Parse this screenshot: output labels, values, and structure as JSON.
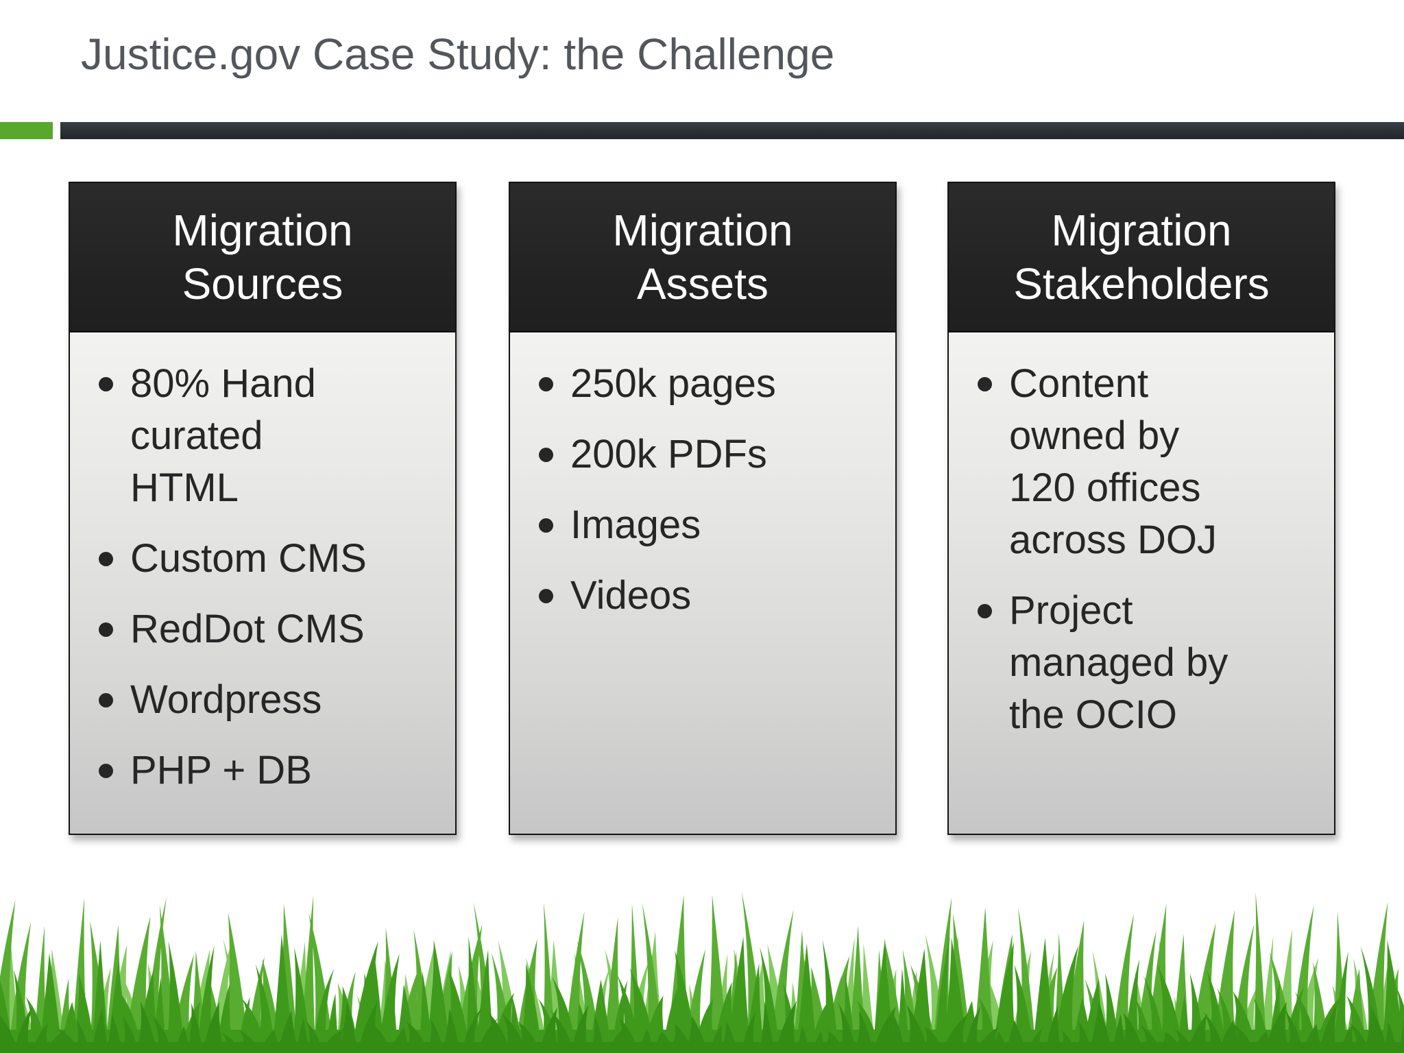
{
  "slide": {
    "title": "Justice.gov Case Study: the Challenge"
  },
  "columns": [
    {
      "header": "Migration Sources",
      "items": [
        "80% Hand curated HTML",
        "Custom CMS",
        "RedDot CMS",
        "Wordpress",
        "PHP + DB"
      ]
    },
    {
      "header": "Migration Assets",
      "items": [
        "250k pages",
        "200k PDFs",
        "Images",
        "Videos"
      ]
    },
    {
      "header": "Migration Stakeholders",
      "items": [
        "Content owned by 120 offices across DOJ",
        "Project managed by the OCIO"
      ]
    }
  ],
  "colors": {
    "accent_green": "#57a82c",
    "divider_dark": "#2d3237",
    "card_header_bg": "#242424",
    "card_header_text": "#ffffff",
    "card_body_top": "#f2f2f1",
    "card_body_bottom": "#c6c6c6",
    "bullet_text": "#262626",
    "title_text": "#53565a",
    "grass_back": "#82c95e",
    "grass_mid": "#58ad31",
    "grass_front": "#3f9a1c"
  }
}
